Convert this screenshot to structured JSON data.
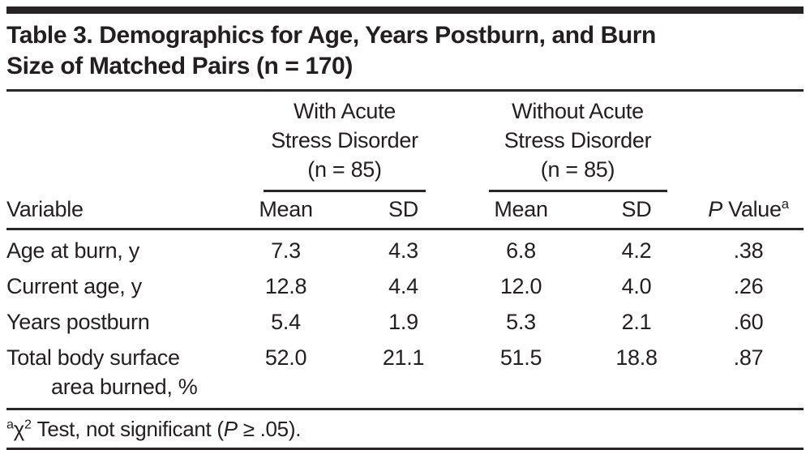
{
  "title": {
    "line1": "Table 3. Demographics for Age, Years Postburn, and Burn",
    "line2": "Size of Matched Pairs (n = 170)"
  },
  "groups": {
    "with_asd": {
      "line1": "With Acute",
      "line2": "Stress Disorder",
      "line3": "(n = 85)"
    },
    "without_asd": {
      "line1": "Without Acute",
      "line2": "Stress Disorder",
      "line3": "(n = 85)"
    }
  },
  "columns": {
    "variable": "Variable",
    "mean": "Mean",
    "sd": "SD",
    "pvalue": {
      "p": "P",
      "rest": " Value",
      "sup": "a"
    }
  },
  "rows": [
    {
      "variable": "Age at burn, y",
      "with_mean": "7.3",
      "with_sd": "4.3",
      "without_mean": "6.8",
      "without_sd": "4.2",
      "p_value": ".38"
    },
    {
      "variable": "Current age, y",
      "with_mean": "12.8",
      "with_sd": "4.4",
      "without_mean": "12.0",
      "without_sd": "4.0",
      "p_value": ".26"
    },
    {
      "variable": "Years postburn",
      "with_mean": "5.4",
      "with_sd": "1.9",
      "without_mean": "5.3",
      "without_sd": "2.1",
      "p_value": ".60"
    },
    {
      "variable": "Total body surface",
      "variable_line2": "area burned, %",
      "with_mean": "52.0",
      "with_sd": "21.1",
      "without_mean": "51.5",
      "without_sd": "18.8",
      "p_value": ".87"
    }
  ],
  "footnote": {
    "sup_a": "a",
    "chi": "χ",
    "sup_2": "2",
    "text_mid": " Test, not significant (",
    "p": "P",
    "text_end": " ≥ .05)."
  },
  "colors": {
    "text": "#231f20",
    "rule": "#2a2526",
    "background": "#ffffff"
  }
}
